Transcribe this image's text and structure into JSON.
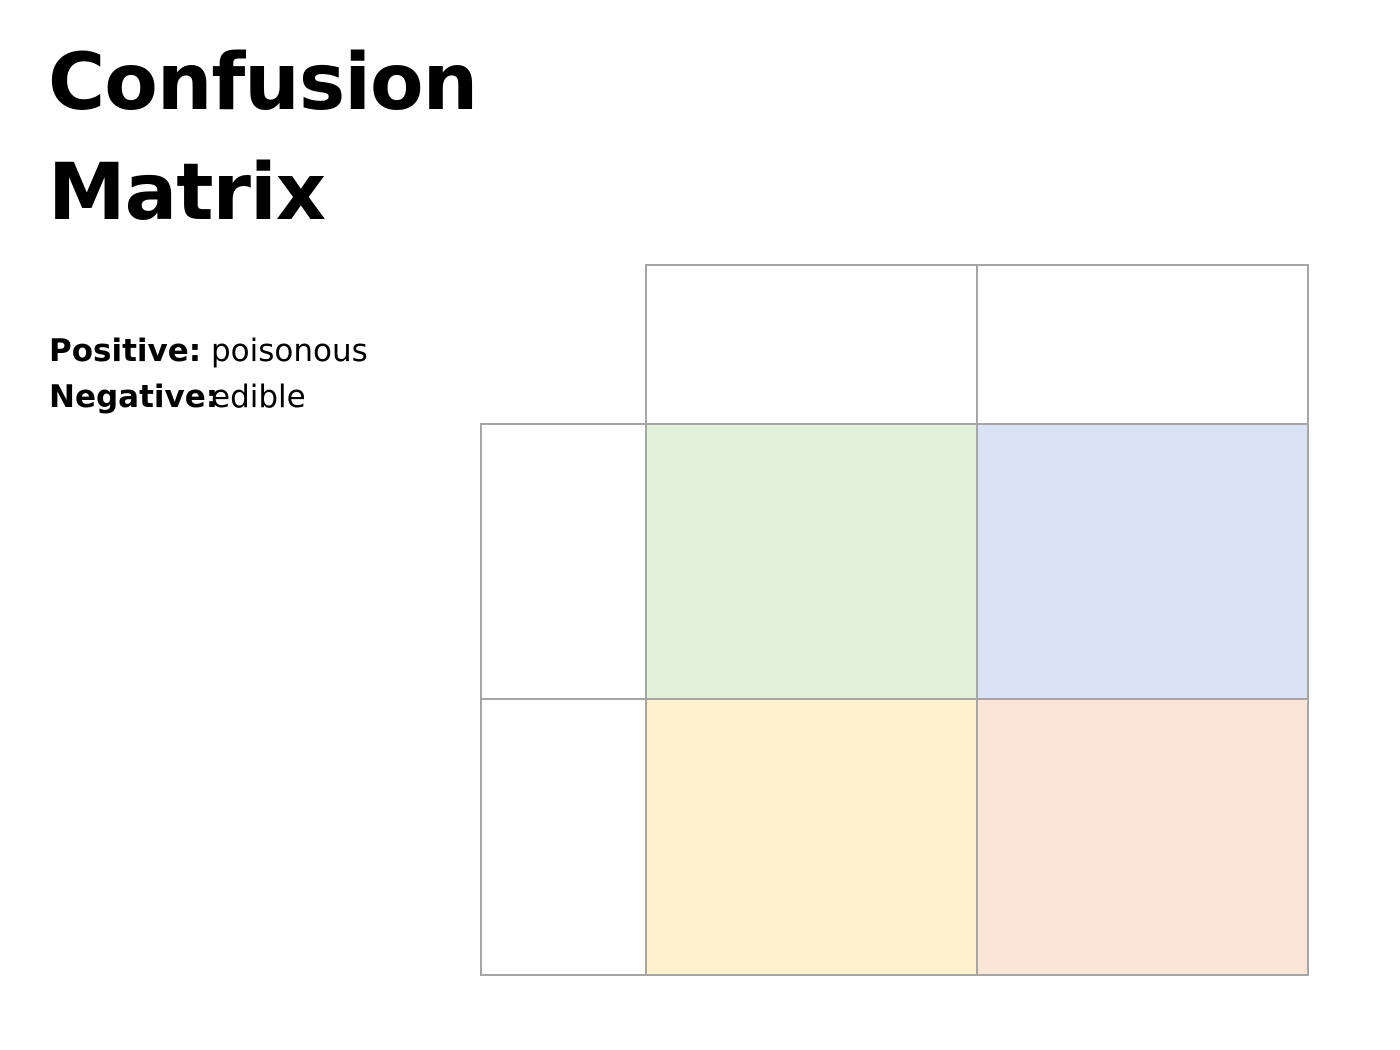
{
  "title": {
    "line1": "Confusion",
    "line2": "Matrix"
  },
  "definitions": {
    "positive": {
      "label": "Positive:",
      "value": "poisonous"
    },
    "negative": {
      "label": "Negative:",
      "value": "edible"
    }
  },
  "matrix": {
    "header_cells": [
      "",
      ""
    ],
    "row_header_cells": [
      "",
      ""
    ],
    "cells": [
      {
        "id": "r1c1",
        "text": "",
        "color": "#e2efd9"
      },
      {
        "id": "r1c2",
        "text": "",
        "color": "#dae3f3"
      },
      {
        "id": "r2c1",
        "text": "",
        "color": "#fff2cc"
      },
      {
        "id": "r2c2",
        "text": "",
        "color": "#fbe5d6"
      }
    ],
    "border_color": "#a6a6a6"
  }
}
